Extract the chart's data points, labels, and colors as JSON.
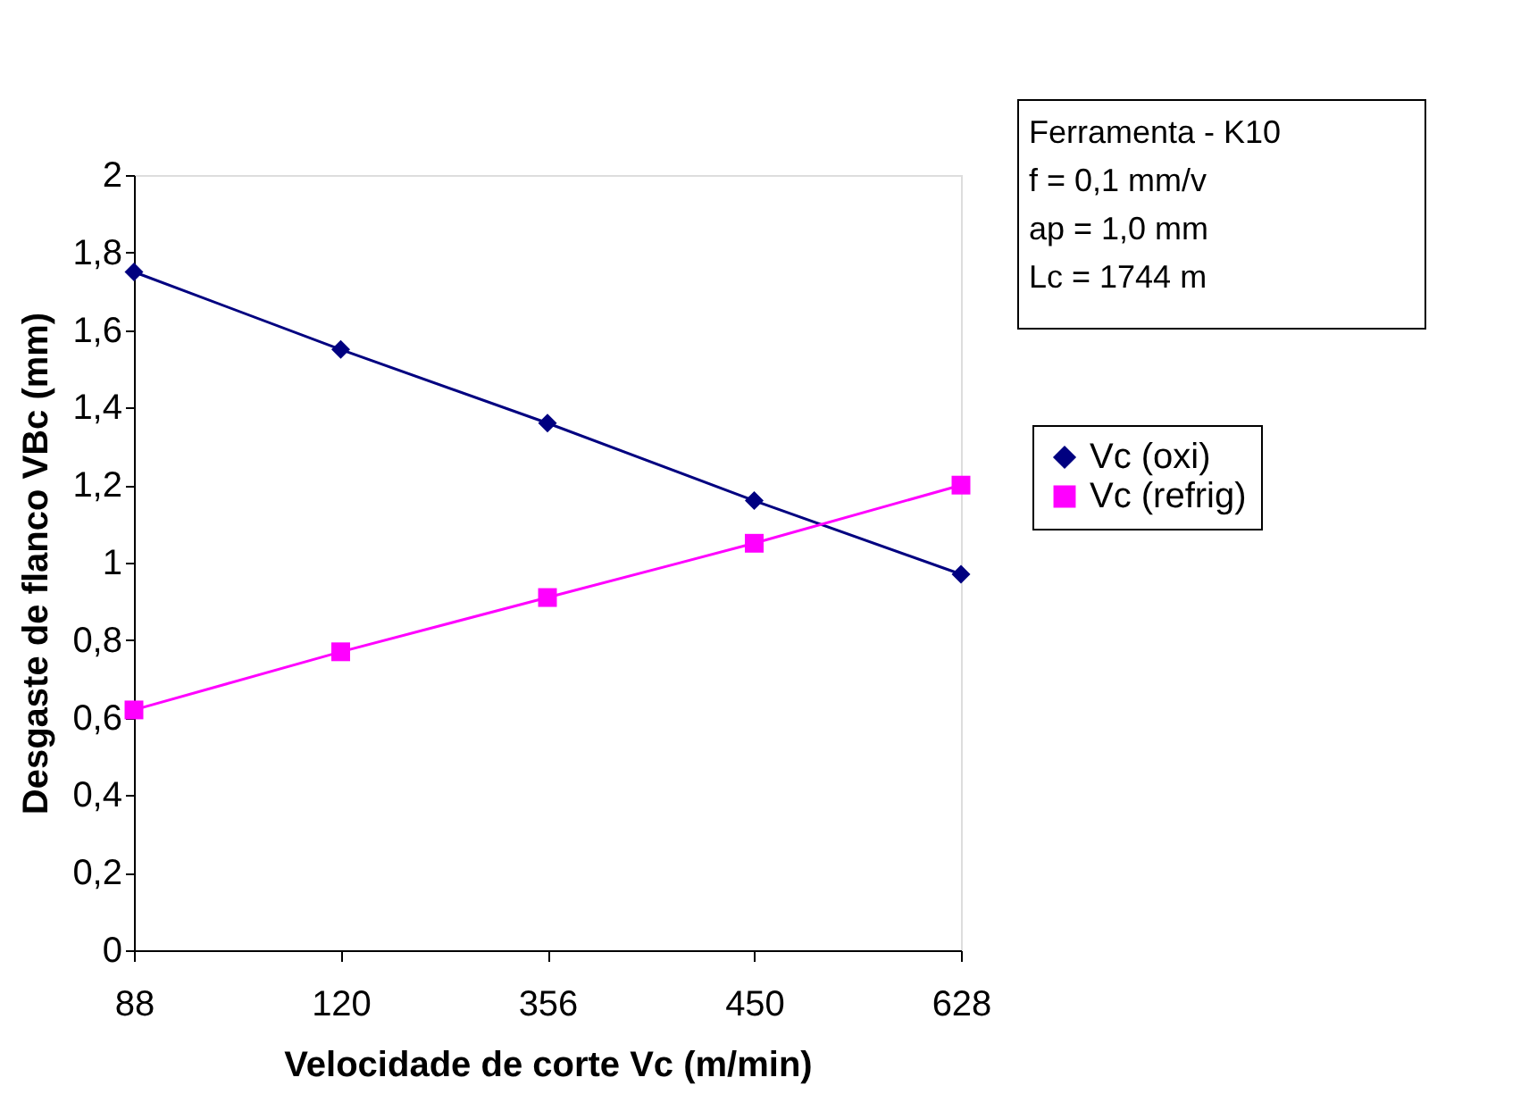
{
  "chart_data": {
    "type": "line",
    "xlabel": "Velocidade de corte Vc (m/min)",
    "ylabel": "Desgaste de flanco VBc (mm)",
    "categories": [
      "88",
      "120",
      "356",
      "450",
      "628"
    ],
    "series": [
      {
        "name": "Vc (oxi)",
        "color": "#000080",
        "marker": "diamond",
        "values": [
          1.75,
          1.55,
          1.36,
          1.16,
          0.97
        ]
      },
      {
        "name": "Vc (refrig)",
        "color": "#ff00ff",
        "marker": "square",
        "values": [
          0.62,
          0.77,
          0.91,
          1.05,
          1.2
        ]
      }
    ],
    "ylim": [
      0,
      2
    ],
    "yticks": [
      0,
      {
        "value": 0.2,
        "label": "0,2"
      },
      {
        "value": 0.4,
        "label": "0,4"
      },
      {
        "value": 0.6,
        "label": "0,6"
      },
      {
        "value": 0.8,
        "label": "0,8"
      },
      1,
      {
        "value": 1.2,
        "label": "1,2"
      },
      {
        "value": 1.4,
        "label": "1,4"
      },
      {
        "value": 1.6,
        "label": "1,6"
      },
      {
        "value": 1.8,
        "label": "1,8"
      },
      2
    ],
    "annotations": [
      "Ferramenta - K10",
      "f = 0,1 mm/v",
      "ap = 1,0 mm",
      "Lc = 1744 m"
    ],
    "legend": "right",
    "grid": false,
    "line_style": "solid"
  }
}
